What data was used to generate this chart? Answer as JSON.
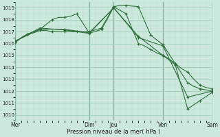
{
  "xlabel": "Pression niveau de la mer( hPa )",
  "ylim": [
    1009.5,
    1019.5
  ],
  "yticks": [
    1010,
    1011,
    1012,
    1013,
    1014,
    1015,
    1016,
    1017,
    1018,
    1019
  ],
  "bg_color": "#cce8dc",
  "grid_major_color": "#99ccb3",
  "grid_minor_color": "#bbddd0",
  "line_color": "#2d6e3a",
  "vline_color": "#5a8a6a",
  "day_labels": [
    "Mer",
    "",
    "",
    "",
    "",
    "",
    "Dim",
    "",
    "Jeu",
    "",
    "",
    "",
    "Ven",
    "",
    "",
    "",
    "Sam"
  ],
  "day_tick_positions": [
    0,
    1,
    2,
    3,
    4,
    5,
    6,
    7,
    8,
    9,
    10,
    11,
    12,
    13,
    14,
    15,
    16
  ],
  "show_labels": [
    0,
    6,
    8,
    12,
    16
  ],
  "show_label_names": [
    "Mer",
    "Dim",
    "Jeu",
    "Ven",
    "Sam"
  ],
  "vline_positions": [
    0,
    6,
    8,
    12,
    16
  ],
  "xlim": [
    0,
    16
  ],
  "series": [
    {
      "x": [
        0,
        0.5,
        1,
        1.5,
        2,
        2.5,
        3,
        3.5,
        4,
        4.5,
        5,
        5.5,
        6,
        6.5,
        7,
        7.5,
        8,
        8.5,
        9,
        9.5,
        10,
        10.5,
        11,
        11.5,
        12,
        12.5,
        13,
        13.5,
        14,
        14.5,
        15,
        15.5,
        16
      ],
      "y": [
        1016.1,
        1016.5,
        1016.8,
        1016.9,
        1017.1,
        1017.1,
        1017.0,
        1017.0,
        1017.0,
        1017.0,
        1017.0,
        1017.0,
        1017.0,
        1017.15,
        1017.3,
        1018.2,
        1019.1,
        1019.2,
        1019.2,
        1019.15,
        1019.1,
        1017.9,
        1016.7,
        1016.3,
        1015.9,
        1015.1,
        1014.3,
        1013.5,
        1012.7,
        1012.4,
        1012.2,
        1012.1,
        1012.0
      ],
      "marker_x": [
        0,
        1,
        2,
        3,
        4,
        5,
        6,
        7,
        8,
        9,
        10,
        11,
        12,
        13,
        14,
        15,
        16
      ],
      "marker_y": [
        1016.1,
        1016.8,
        1017.1,
        1017.0,
        1017.0,
        1017.0,
        1017.0,
        1017.3,
        1019.1,
        1019.2,
        1019.1,
        1016.7,
        1015.9,
        1014.3,
        1012.7,
        1012.2,
        1012.0
      ]
    },
    {
      "x": [
        0,
        0.5,
        1,
        1.5,
        2,
        2.5,
        3,
        3.5,
        4,
        4.5,
        5,
        5.5,
        6,
        6.5,
        7,
        7.5,
        8,
        8.5,
        9,
        9.5,
        10,
        10.5,
        11,
        11.5,
        12,
        12.5,
        13,
        13.5,
        14,
        14.5,
        15,
        15.5,
        16
      ],
      "y": [
        1016.1,
        1016.5,
        1016.8,
        1017.0,
        1017.2,
        1017.6,
        1018.0,
        1018.2,
        1018.2,
        1018.3,
        1018.5,
        1017.7,
        1016.9,
        1017.0,
        1017.2,
        1018.1,
        1019.1,
        1018.8,
        1018.5,
        1017.2,
        1016.0,
        1015.8,
        1015.5,
        1015.2,
        1015.0,
        1014.7,
        1014.3,
        1013.9,
        1013.6,
        1013.0,
        1012.5,
        1012.3,
        1012.2
      ],
      "marker_x": [
        0,
        1,
        2,
        3,
        4,
        5,
        6,
        7,
        8,
        9,
        10,
        11,
        12,
        13,
        14,
        15,
        16
      ],
      "marker_y": [
        1016.1,
        1016.8,
        1017.2,
        1018.0,
        1018.2,
        1018.5,
        1016.9,
        1017.2,
        1019.1,
        1018.5,
        1016.0,
        1015.5,
        1015.0,
        1014.3,
        1013.6,
        1012.5,
        1012.2
      ]
    },
    {
      "x": [
        0,
        2,
        4,
        6,
        8,
        10,
        12,
        14,
        16
      ],
      "y": [
        1016.2,
        1017.2,
        1017.2,
        1016.9,
        1019.0,
        1016.5,
        1015.8,
        1011.5,
        1012.0
      ],
      "marker_x": [
        0,
        2,
        4,
        6,
        8,
        10,
        12,
        14,
        16
      ],
      "marker_y": [
        1016.2,
        1017.2,
        1017.2,
        1016.9,
        1019.0,
        1016.5,
        1015.8,
        1011.5,
        1012.0
      ]
    },
    {
      "x": [
        0,
        2,
        4,
        6,
        8,
        10,
        12,
        13,
        14,
        15,
        16
      ],
      "y": [
        1016.2,
        1017.3,
        1017.15,
        1016.85,
        1019.0,
        1016.6,
        1015.0,
        1014.2,
        1010.5,
        1011.2,
        1011.9
      ],
      "marker_x": [
        0,
        2,
        4,
        6,
        8,
        10,
        12,
        13,
        14,
        15,
        16
      ],
      "marker_y": [
        1016.2,
        1017.3,
        1017.15,
        1016.85,
        1019.0,
        1016.6,
        1015.0,
        1014.2,
        1010.5,
        1011.2,
        1011.9
      ]
    }
  ]
}
